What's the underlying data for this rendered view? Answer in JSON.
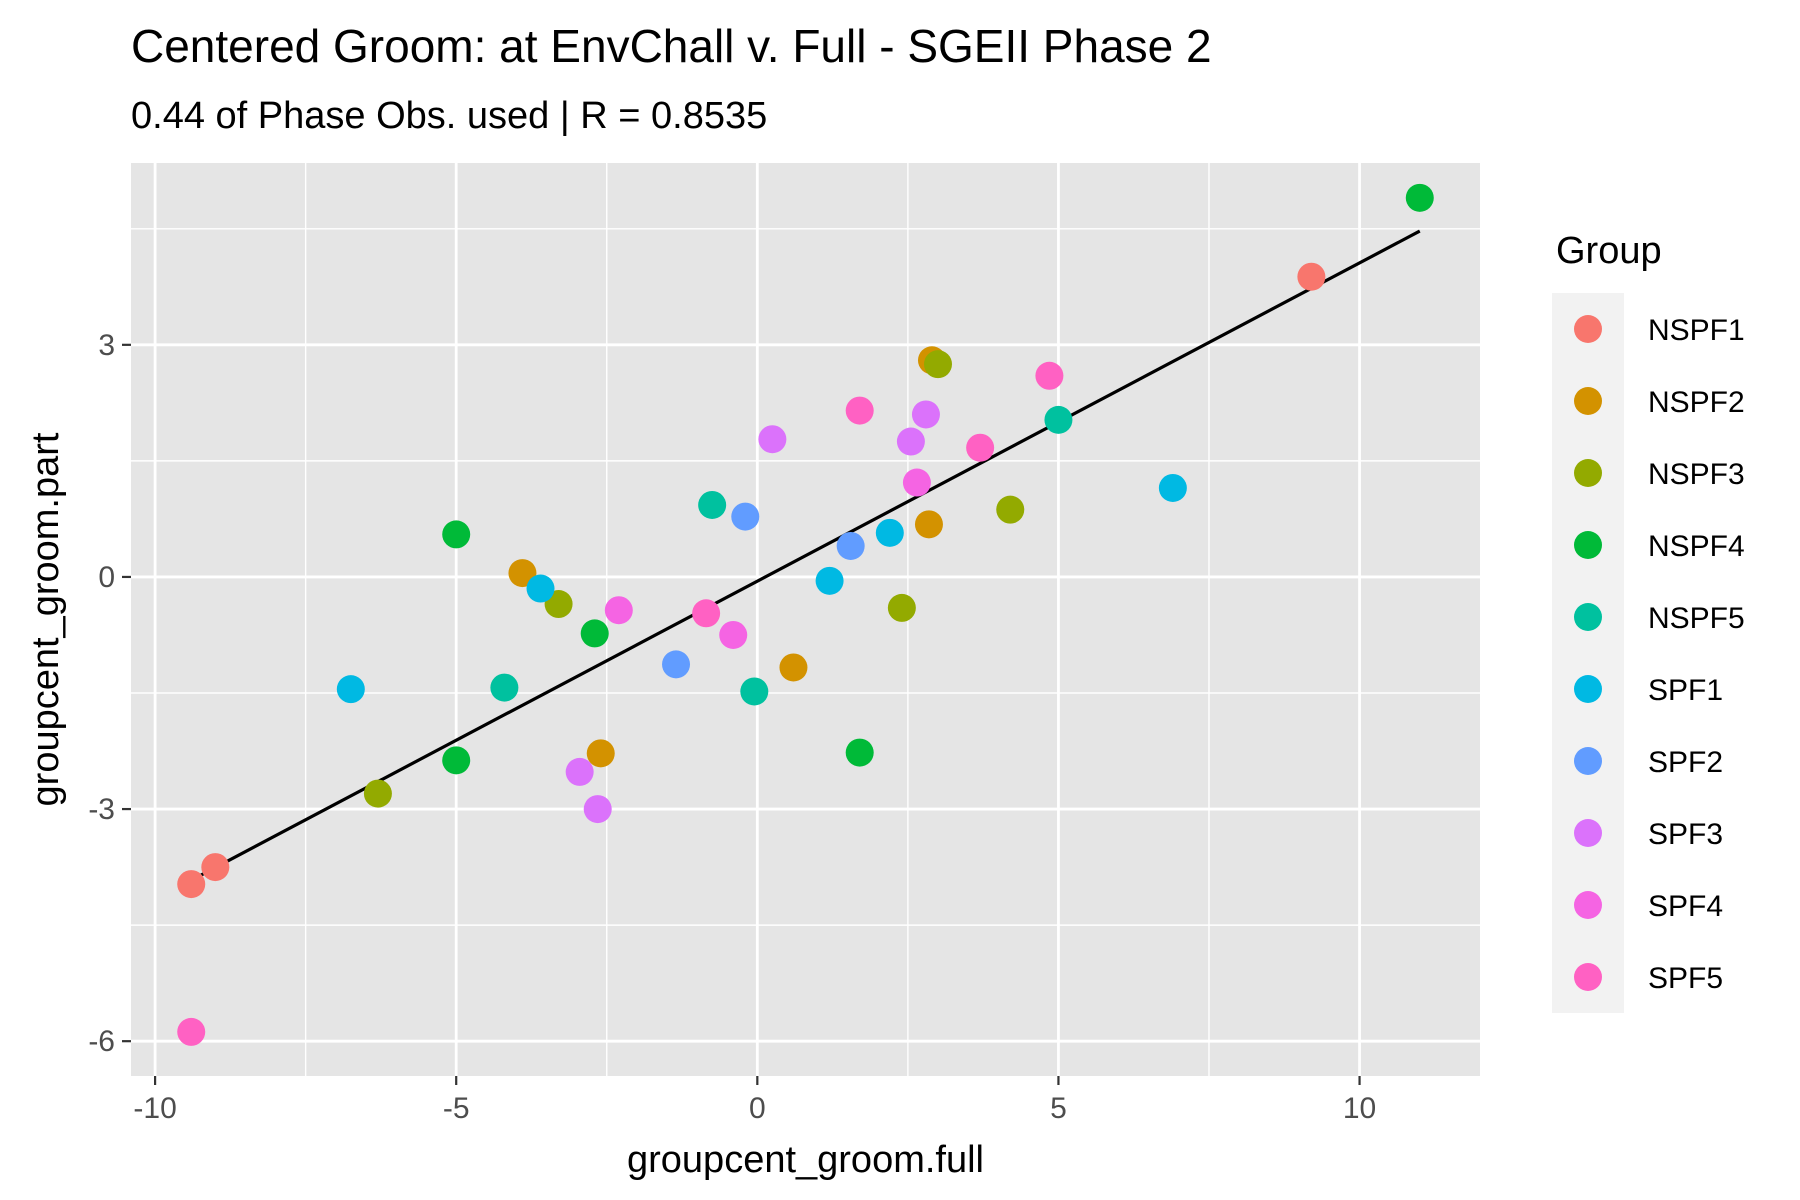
{
  "chart_data": {
    "type": "scatter",
    "title": "Centered Groom: at EnvChall v. Full - SGEII Phase 2",
    "subtitle": "0.44 of Phase Obs. used | R = 0.8535",
    "xlabel": "groupcent_groom.full",
    "ylabel": "groupcent_groom.part",
    "xlim": [
      -10.4,
      12
    ],
    "ylim": [
      -6.45,
      5.35
    ],
    "x_ticks": [
      -10,
      -5,
      0,
      5,
      10
    ],
    "x_tick_labels": [
      "-10",
      "-5",
      "0",
      "5",
      "10"
    ],
    "y_ticks": [
      -6,
      -3,
      0,
      3
    ],
    "y_tick_labels": [
      "-6",
      "-3",
      "0",
      "3"
    ],
    "x_minor": [
      -7.5,
      -2.5,
      2.5,
      7.5
    ],
    "y_minor": [
      -4.5,
      -1.5,
      1.5,
      4.5
    ],
    "grid": true,
    "background": "#e5e5e5",
    "legend_title": "Group",
    "legend_position": "right",
    "fit_line": {
      "x": [
        -9.35,
        11.0
      ],
      "y": [
        -3.9,
        4.47
      ],
      "color": "#000000"
    },
    "series": [
      {
        "name": "NSPF1",
        "color": "#F8766D",
        "x": [
          9.2,
          -9.0,
          -9.4
        ],
        "y": [
          3.88,
          -3.75,
          -3.97
        ]
      },
      {
        "name": "NSPF2",
        "color": "#D39200",
        "x": [
          2.9,
          -3.9,
          2.85,
          0.6,
          -2.6
        ],
        "y": [
          2.8,
          0.05,
          0.68,
          -1.17,
          -2.28
        ]
      },
      {
        "name": "NSPF3",
        "color": "#93AA00",
        "x": [
          3.0,
          4.2,
          -3.3,
          2.4,
          -6.3
        ],
        "y": [
          2.75,
          0.87,
          -0.35,
          -0.4,
          -2.8
        ]
      },
      {
        "name": "NSPF4",
        "color": "#00BA38",
        "x": [
          11.0,
          -5.0,
          -2.7,
          -5.0,
          1.7
        ],
        "y": [
          4.9,
          0.55,
          -0.73,
          -2.37,
          -2.27
        ]
      },
      {
        "name": "NSPF5",
        "color": "#00C19F",
        "x": [
          5.0,
          -0.75,
          -4.2,
          -0.05
        ],
        "y": [
          2.03,
          0.93,
          -1.43,
          -1.48
        ]
      },
      {
        "name": "SPF1",
        "color": "#00B9E3",
        "x": [
          6.9,
          2.2,
          1.2,
          -3.6,
          -6.75
        ],
        "y": [
          1.15,
          0.57,
          -0.05,
          -0.15,
          -1.45
        ]
      },
      {
        "name": "SPF2",
        "color": "#619CFF",
        "x": [
          -0.2,
          1.55,
          -1.35
        ],
        "y": [
          0.78,
          0.4,
          -1.13
        ]
      },
      {
        "name": "SPF3",
        "color": "#DB72FB",
        "x": [
          0.25,
          2.8,
          2.55,
          -2.95,
          -2.65
        ],
        "y": [
          1.78,
          2.1,
          1.75,
          -2.52,
          -3.0
        ]
      },
      {
        "name": "SPF4",
        "color": "#F564E3",
        "x": [
          2.65,
          -2.3,
          -0.4
        ],
        "y": [
          1.22,
          -0.43,
          -0.75
        ]
      },
      {
        "name": "SPF5",
        "color": "#FF61C3",
        "x": [
          4.85,
          1.7,
          3.7,
          -0.85,
          -9.4
        ],
        "y": [
          2.6,
          2.15,
          1.67,
          -0.47,
          -5.88
        ]
      }
    ]
  }
}
